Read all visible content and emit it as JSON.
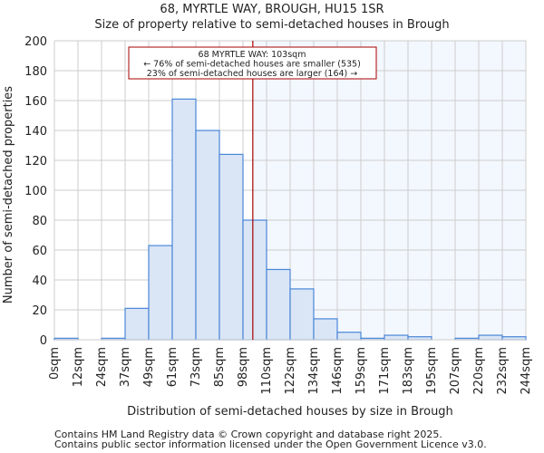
{
  "chart_data": {
    "type": "bar",
    "title": "68, MYRTLE WAY, BROUGH, HU15 1SR",
    "subtitle": "Size of property relative to semi-detached houses in Brough",
    "xlabel": "Distribution of semi-detached houses by size in Brough",
    "ylabel": "Number of semi-detached properties",
    "tick_labels": [
      "0sqm",
      "12sqm",
      "24sqm",
      "37sqm",
      "49sqm",
      "61sqm",
      "73sqm",
      "85sqm",
      "98sqm",
      "110sqm",
      "122sqm",
      "134sqm",
      "146sqm",
      "159sqm",
      "171sqm",
      "183sqm",
      "195sqm",
      "207sqm",
      "220sqm",
      "232sqm",
      "244sqm"
    ],
    "values": [
      1,
      0,
      1,
      21,
      63,
      161,
      140,
      124,
      80,
      47,
      34,
      14,
      5,
      1,
      3,
      2,
      0,
      1,
      3,
      2
    ],
    "ylim": [
      0,
      200
    ],
    "yticks": [
      0,
      20,
      40,
      60,
      80,
      100,
      120,
      140,
      160,
      180,
      200
    ],
    "grid": true,
    "marker_value_sqm": 103,
    "annotation": {
      "line1": "68 MYRTLE WAY: 103sqm",
      "line2": "← 76% of semi-detached houses are smaller (535)",
      "line3": "23% of semi-detached houses are larger (164) →"
    },
    "colors": {
      "bar_fill": "#dae6f5",
      "bar_stroke": "#4a86d8",
      "highlight_bg": "#f3f7fe",
      "marker": "#aa0000",
      "grid": "#cccccc"
    }
  },
  "footer": {
    "line1": "Contains HM Land Registry data © Crown copyright and database right 2025.",
    "line2": "Contains public sector information licensed under the Open Government Licence v3.0."
  }
}
